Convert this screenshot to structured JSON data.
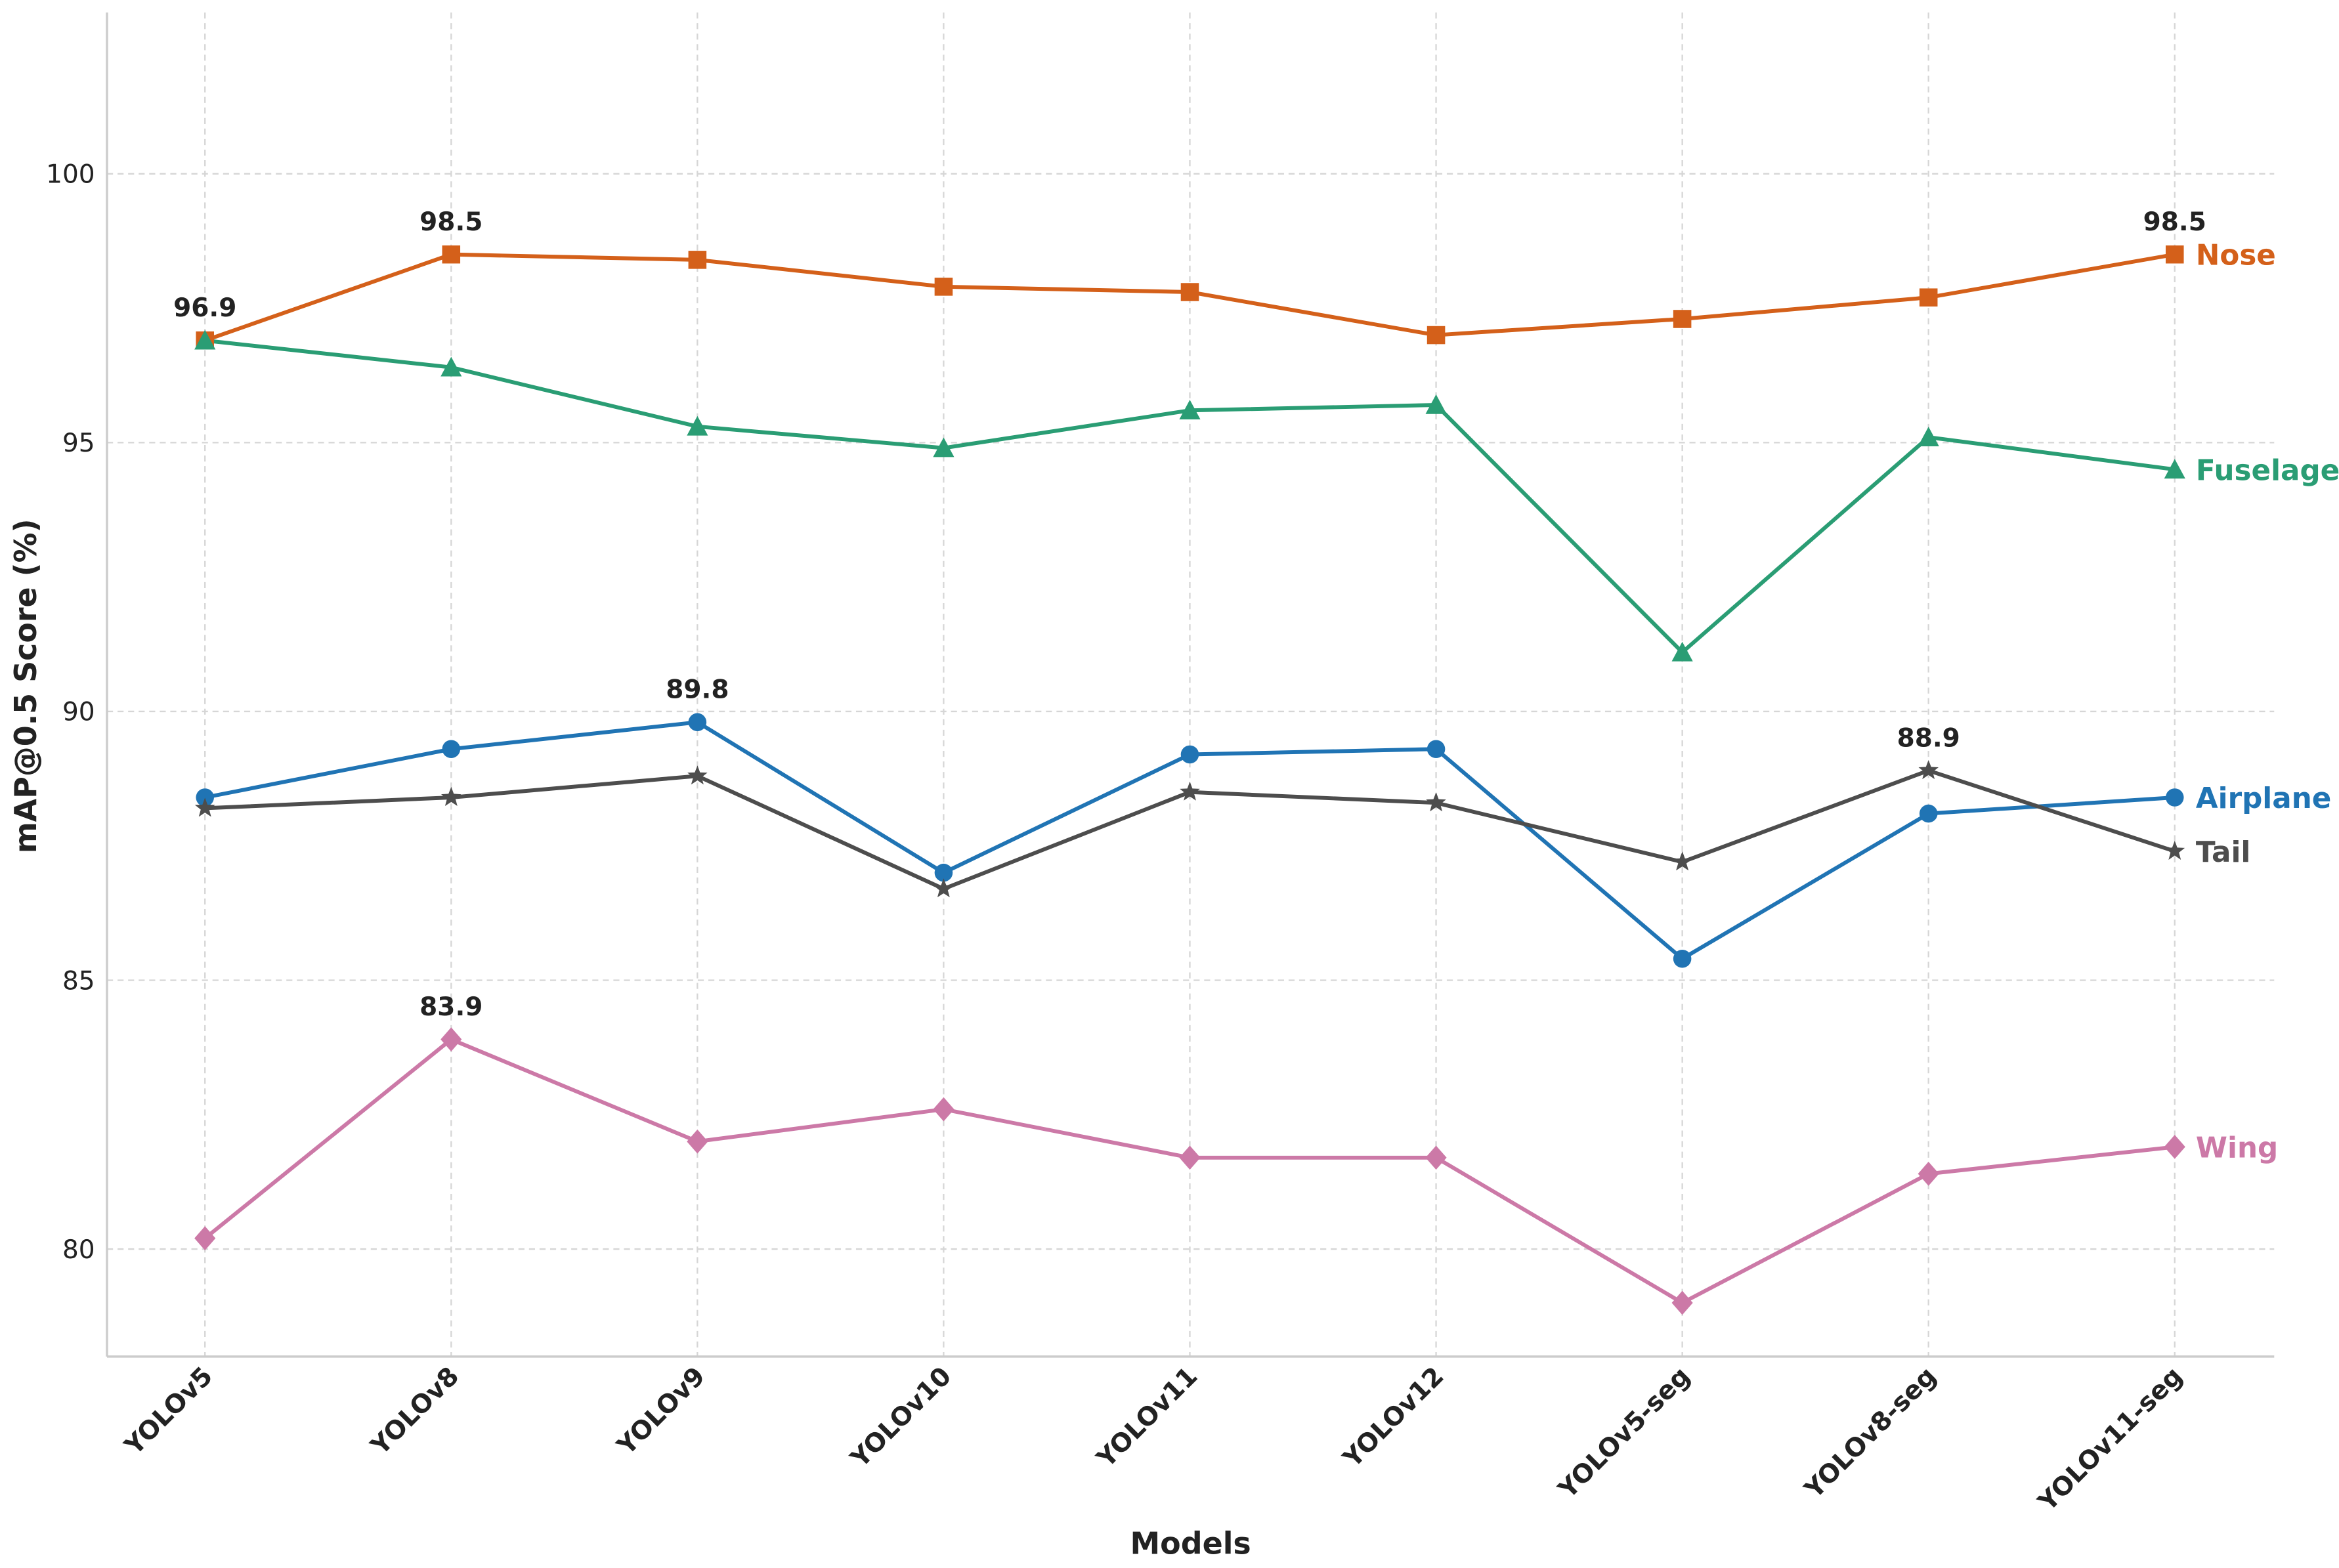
{
  "chart_data": {
    "type": "line",
    "x_label": "Models",
    "y_label": "mAP@0.5 Score (%)",
    "categories": [
      "YOLOv5",
      "YOLOv8",
      "YOLOv9",
      "YOLOv10",
      "YOLOv11",
      "YOLOv12",
      "YOLOv5-seg",
      "YOLOv8-seg",
      "YOLOv11-seg"
    ],
    "ylim": [
      78,
      103
    ],
    "yticks": [
      80,
      85,
      90,
      95,
      100
    ],
    "grid": true,
    "legend": "line-end",
    "series": [
      {
        "name": "Nose",
        "color": "#d4601a",
        "marker": "square",
        "values": [
          96.9,
          98.5,
          98.4,
          97.9,
          97.8,
          97.0,
          97.3,
          97.7,
          98.5
        ],
        "value_labels": [
          "96.9",
          "98.5",
          null,
          null,
          null,
          null,
          null,
          null,
          "98.5"
        ]
      },
      {
        "name": "Fuselage",
        "color": "#2a9d74",
        "marker": "triangle",
        "values": [
          96.9,
          96.4,
          95.3,
          94.9,
          95.6,
          95.7,
          91.1,
          95.1,
          94.5
        ]
      },
      {
        "name": "Airplane",
        "color": "#2074b4",
        "marker": "circle",
        "values": [
          88.4,
          89.3,
          89.8,
          87.0,
          89.2,
          89.3,
          85.4,
          88.1,
          88.4
        ],
        "value_labels": [
          null,
          null,
          "89.8",
          null,
          null,
          null,
          null,
          null,
          null
        ]
      },
      {
        "name": "Tail",
        "color": "#4d4d4d",
        "marker": "star",
        "values": [
          88.2,
          88.4,
          88.8,
          86.7,
          88.5,
          88.3,
          87.2,
          88.9,
          87.4
        ],
        "value_labels": [
          null,
          null,
          null,
          null,
          null,
          null,
          null,
          "88.9",
          null
        ]
      },
      {
        "name": "Wing",
        "color": "#cc79a7",
        "marker": "diamond",
        "values": [
          80.2,
          83.9,
          82.0,
          82.6,
          81.7,
          81.7,
          79.0,
          81.4,
          81.9
        ],
        "value_labels": [
          null,
          "83.9",
          null,
          null,
          null,
          null,
          null,
          null,
          null
        ]
      }
    ]
  }
}
